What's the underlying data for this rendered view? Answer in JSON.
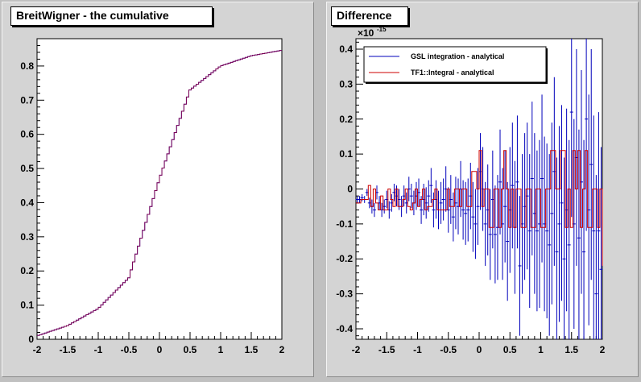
{
  "chart_data": [
    {
      "type": "line",
      "title": "BreitWigner - the cumulative",
      "xlabel": "",
      "ylabel": "",
      "xlim": [
        -2,
        2
      ],
      "ylim": [
        0,
        0.88
      ],
      "xticks": [
        "-2",
        "-1.5",
        "-1",
        "-0.5",
        "0",
        "0.5",
        "1",
        "1.5",
        "2"
      ],
      "yticks": [
        "0",
        "0.1",
        "0.2",
        "0.3",
        "0.4",
        "0.5",
        "0.6",
        "0.7",
        "0.8"
      ],
      "bins": 100,
      "series": [
        {
          "color": "#0000cc",
          "x": [
            -2,
            -1.5,
            -1,
            -0.5,
            0,
            0.5,
            1,
            1.5,
            2
          ],
          "values": [
            0.01,
            0.04,
            0.09,
            0.18,
            0.47,
            0.73,
            0.8,
            0.83,
            0.846
          ]
        },
        {
          "color": "#cc0000",
          "x": [
            -2,
            -1.5,
            -1,
            -0.5,
            0,
            0.5,
            1,
            1.5,
            2
          ],
          "values": [
            0.01,
            0.04,
            0.09,
            0.18,
            0.47,
            0.73,
            0.8,
            0.83,
            0.846
          ]
        }
      ],
      "grid": false
    },
    {
      "type": "line",
      "title": "Difference",
      "exponent_label": "×10",
      "exponent_power": "-15",
      "xlim": [
        -2,
        2
      ],
      "ylim": [
        -0.43,
        0.43
      ],
      "xticks": [
        "-2",
        "-1.5",
        "-1",
        "-0.5",
        "0",
        "0.5",
        "1",
        "1.5",
        "2"
      ],
      "yticks": [
        "-0.4",
        "-0.3",
        "-0.2",
        "-0.1",
        "0",
        "0.1",
        "0.2",
        "0.3",
        "0.4"
      ],
      "legend_position": "top-left",
      "series": [
        {
          "name": "GSL integration - analytical",
          "color": "#0000bb",
          "x": [
            -1.98,
            -1.94,
            -1.9,
            -1.86,
            -1.82,
            -1.78,
            -1.74,
            -1.7,
            -1.66,
            -1.62,
            -1.58,
            -1.54,
            -1.5,
            -1.46,
            -1.42,
            -1.38,
            -1.34,
            -1.3,
            -1.26,
            -1.22,
            -1.18,
            -1.14,
            -1.1,
            -1.06,
            -1.02,
            -0.98,
            -0.94,
            -0.9,
            -0.86,
            -0.82,
            -0.78,
            -0.74,
            -0.7,
            -0.66,
            -0.62,
            -0.58,
            -0.54,
            -0.5,
            -0.46,
            -0.42,
            -0.38,
            -0.34,
            -0.3,
            -0.26,
            -0.22,
            -0.18,
            -0.14,
            -0.1,
            -0.06,
            -0.02,
            0.02,
            0.06,
            0.1,
            0.14,
            0.18,
            0.22,
            0.26,
            0.3,
            0.34,
            0.38,
            0.42,
            0.46,
            0.5,
            0.54,
            0.58,
            0.62,
            0.66,
            0.7,
            0.74,
            0.78,
            0.82,
            0.86,
            0.9,
            0.94,
            0.98,
            1.02,
            1.06,
            1.1,
            1.14,
            1.18,
            1.22,
            1.26,
            1.3,
            1.34,
            1.38,
            1.42,
            1.46,
            1.5,
            1.54,
            1.58,
            1.62,
            1.66,
            1.7,
            1.74,
            1.78,
            1.82,
            1.86,
            1.9,
            1.94,
            1.98
          ],
          "values": [
            -0.03,
            -0.03,
            -0.025,
            -0.03,
            -0.01,
            -0.04,
            -0.05,
            -0.06,
            -0.01,
            -0.04,
            -0.06,
            -0.05,
            -0.03,
            -0.06,
            -0.04,
            -0.01,
            -0.02,
            -0.03,
            -0.05,
            -0.02,
            -0.04,
            0,
            -0.02,
            -0.04,
            -0.02,
            -0.01,
            -0.06,
            -0.03,
            -0.04,
            -0.02,
            0.01,
            -0.06,
            -0.03,
            -0.06,
            -0.04,
            -0.03,
            0,
            -0.06,
            -0.03,
            -0.08,
            -0.04,
            -0.05,
            0,
            -0.06,
            -0.07,
            -0.06,
            -0.02,
            -0.08,
            -0.1,
            -0.05,
            0.05,
            0,
            -0.1,
            -0.06,
            -0.13,
            -0.03,
            -0.13,
            -0.11,
            0.02,
            -0.1,
            -0.05,
            -0.15,
            -0.06,
            0.01,
            -0.11,
            0.02,
            -0.22,
            -0.1,
            -0.05,
            -0.02,
            -0.12,
            0.03,
            -0.07,
            -0.12,
            -0.1,
            0.03,
            -0.1,
            -0.12,
            -0.16,
            -0.07,
            0.05,
            -0.18,
            -0.1,
            -0.04,
            -0.2,
            -0.06,
            -0.16,
            0.22,
            -0.1,
            0.09,
            -0.14,
            0.02,
            -0.18,
            0.2,
            -0.06,
            0.07,
            -0.12,
            -0.3,
            -0.12,
            -0.23
          ],
          "errors": [
            0.01,
            0.01,
            0.01,
            0.01,
            0.01,
            0.015,
            0.02,
            0.02,
            0.02,
            0.02,
            0.02,
            0.02,
            0.025,
            0.025,
            0.025,
            0.025,
            0.03,
            0.03,
            0.03,
            0.03,
            0.03,
            0.035,
            0.035,
            0.035,
            0.04,
            0.04,
            0.04,
            0.045,
            0.045,
            0.045,
            0.05,
            0.05,
            0.055,
            0.055,
            0.06,
            0.06,
            0.065,
            0.065,
            0.07,
            0.07,
            0.075,
            0.08,
            0.08,
            0.085,
            0.09,
            0.09,
            0.095,
            0.1,
            0.1,
            0.11,
            0.11,
            0.12,
            0.12,
            0.13,
            0.13,
            0.14,
            0.14,
            0.15,
            0.15,
            0.16,
            0.16,
            0.17,
            0.18,
            0.18,
            0.19,
            0.19,
            0.2,
            0.2,
            0.21,
            0.21,
            0.22,
            0.22,
            0.23,
            0.23,
            0.24,
            0.24,
            0.25,
            0.25,
            0.26,
            0.26,
            0.27,
            0.27,
            0.28,
            0.28,
            0.29,
            0.29,
            0.3,
            0.3,
            0.3,
            0.31,
            0.31,
            0.32,
            0.32,
            0.32,
            0.33,
            0.33,
            0.33,
            0.34,
            0.34,
            0.35
          ]
        },
        {
          "name": "TF1::Integral  - analytical",
          "color": "#cc0000",
          "x": [
            -2.0,
            -1.92,
            -1.84,
            -1.8,
            -1.76,
            -1.72,
            -1.68,
            -1.64,
            -1.6,
            -1.56,
            -1.52,
            -1.48,
            -1.44,
            -1.4,
            -1.36,
            -1.32,
            -1.28,
            -1.24,
            -1.2,
            -1.16,
            -1.12,
            -1.08,
            -1.04,
            -1.0,
            -0.96,
            -0.92,
            -0.88,
            -0.84,
            -0.8,
            -0.76,
            -0.72,
            -0.68,
            -0.64,
            -0.6,
            -0.56,
            -0.52,
            -0.48,
            -0.4,
            -0.32,
            -0.28,
            -0.2,
            -0.12,
            -0.04,
            0.0,
            0.04,
            0.08,
            0.16,
            0.24,
            0.32,
            0.36,
            0.4,
            0.44,
            0.48,
            0.52,
            0.56,
            0.6,
            0.68,
            0.76,
            0.84,
            0.92,
            1.0,
            1.08,
            1.16,
            1.24,
            1.32,
            1.4,
            1.44,
            1.48,
            1.52,
            1.56,
            1.6,
            1.64,
            1.68,
            1.72,
            1.76,
            1.84,
            1.92,
            1.96,
            2.0
          ],
          "values": [
            -0.04,
            -0.03,
            -0.03,
            0.01,
            -0.05,
            0.0,
            -0.04,
            -0.06,
            -0.02,
            -0.06,
            -0.06,
            0.0,
            -0.03,
            -0.05,
            0.0,
            -0.05,
            -0.05,
            -0.03,
            0.0,
            -0.05,
            -0.06,
            -0.04,
            0.0,
            -0.05,
            -0.03,
            0.0,
            -0.06,
            -0.05,
            -0.05,
            -0.03,
            0.0,
            -0.06,
            -0.06,
            -0.06,
            -0.06,
            0.0,
            -0.05,
            0.0,
            -0.05,
            0.0,
            -0.05,
            0.05,
            0.0,
            0.11,
            -0.05,
            0.0,
            -0.11,
            0.0,
            -0.11,
            0.0,
            0.11,
            0.0,
            -0.11,
            0.0,
            -0.11,
            0.0,
            -0.11,
            0.0,
            -0.11,
            0.0,
            -0.11,
            0.0,
            0.11,
            0.0,
            0.11,
            -0.11,
            0.0,
            -0.11,
            0.11,
            0.0,
            0.11,
            -0.11,
            0.0,
            0.11,
            -0.11,
            0.0,
            -0.11,
            0.0,
            -0.22
          ]
        }
      ]
    }
  ]
}
